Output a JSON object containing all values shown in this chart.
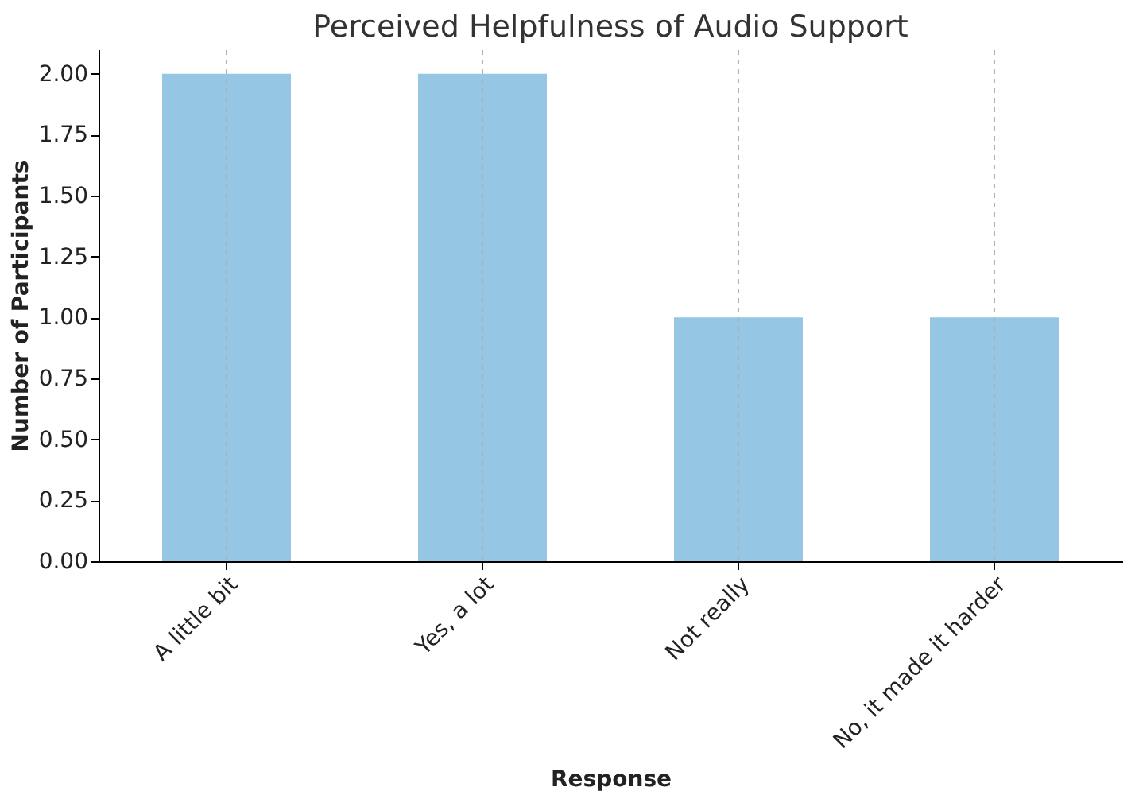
{
  "chart_data": {
    "type": "bar",
    "title": "Perceived Helpfulness of Audio Support",
    "xlabel": "Response",
    "ylabel": "Number of Participants",
    "categories": [
      "A little bit",
      "Yes, a lot",
      "Not really",
      "No, it made it harder"
    ],
    "values": [
      2,
      2,
      1,
      1
    ],
    "color": "#95c7e5",
    "ylim": [
      0,
      2.1
    ],
    "yticks": [
      {
        "value": 0,
        "label": "0.00"
      },
      {
        "value": 0.25,
        "label": "0.25"
      },
      {
        "value": 0.5,
        "label": "0.50"
      },
      {
        "value": 0.75,
        "label": "0.75"
      },
      {
        "value": 1,
        "label": "1.00"
      },
      {
        "value": 1.25,
        "label": "1.25"
      },
      {
        "value": 1.5,
        "label": "1.50"
      },
      {
        "value": 1.75,
        "label": "1.75"
      },
      {
        "value": 2,
        "label": "2.00"
      }
    ],
    "grid": "x"
  }
}
